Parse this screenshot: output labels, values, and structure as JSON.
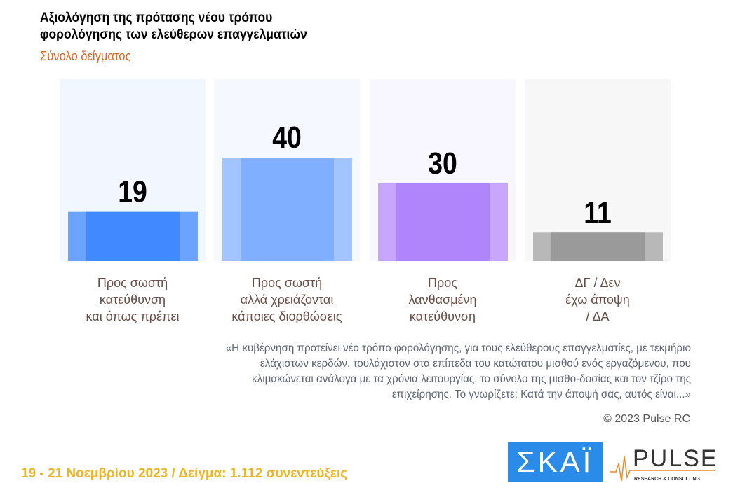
{
  "header": {
    "title_line1": "Αξιολόγηση της πρότασης νέου τρόπου",
    "title_line2": "φορολόγησης των ελεύθερων επαγγελματιών",
    "subtitle": "Σύνολο δείγματος"
  },
  "chart_data": {
    "type": "bar",
    "categories": [
      [
        "Προς σωστή",
        "κατεύθυνση",
        "και όπως πρέπει"
      ],
      [
        "Προς σωστή",
        "αλλά χρειάζονται",
        "κάποιες διορθώσεις"
      ],
      [
        "Προς",
        "λανθασμένη",
        "κατεύθυνση"
      ],
      [
        "ΔΓ / Δεν",
        "έχω άποψη",
        "/ ΔΑ"
      ]
    ],
    "values": [
      19,
      40,
      30,
      11
    ],
    "colors": [
      "#4189ff",
      "#80afff",
      "#b085fc",
      "#9a9a9a"
    ],
    "side_colors": [
      "#6aa4ff",
      "#a2c4ff",
      "#c7a6fb",
      "#b8b8b8"
    ],
    "bg_colors": [
      "#f2f7ff",
      "#f5f8ff",
      "#f8f6ff",
      "#f7f7f7"
    ],
    "ylim": [
      0,
      45
    ],
    "grid": false
  },
  "note": "«Η κυβέρνηση προτείνει νέο τρόπο φορολόγησης, για τους ελεύθερους επαγγελματίες, με τεκμήριο ελάχιστων κερδών, τουλάχιστον στα επίπεδα του κατώτατου μισθού ενός εργαζόμενου, που κλιμακώνεται ανάλογα με τα χρόνια λειτουργίας, το σύνολο της μισθο-δοσίας και τον τζίρο της επιχείρησης. Το γνωρίζετε; Κατά την άποψή σας, αυτός είναι...»",
  "copyright": "© 2023 Pulse RC",
  "footer": "19 - 21  Νοεμβρίου  2023  /  Δείγμα:  1.112 συνεντεύξεις",
  "logos": {
    "skai": "ΣΚΑΪ",
    "pulse": "PULSE",
    "pulse_sub": "RESEARCH & CONSULTING"
  }
}
